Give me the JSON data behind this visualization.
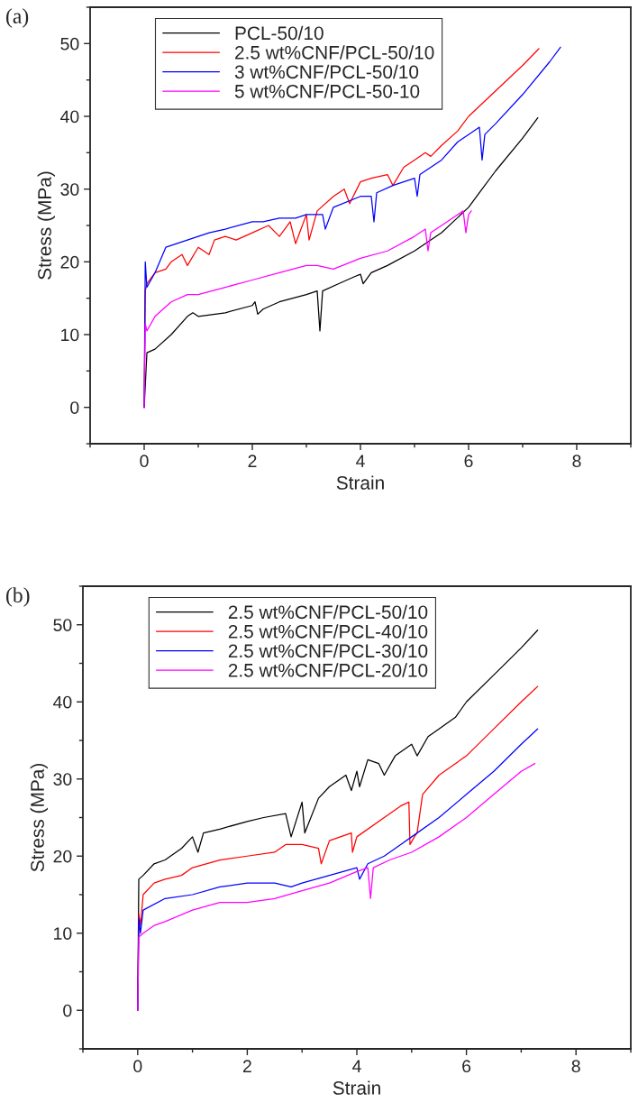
{
  "chart_data": [
    {
      "type": "line",
      "title": "(a)",
      "xlabel": "Strain",
      "ylabel": "Stress (MPa)",
      "xlim": [
        -1,
        9
      ],
      "ylim": [
        -5,
        55
      ],
      "xticks": [
        0,
        2,
        4,
        6,
        8
      ],
      "yticks": [
        0,
        10,
        20,
        30,
        40,
        50
      ],
      "legend": "top left",
      "series": [
        {
          "name": "PCL-50/10",
          "color": "#000000",
          "x": [
            0,
            0.05,
            0.2,
            0.5,
            0.8,
            0.9,
            1,
            1.5,
            2,
            2.05,
            2.1,
            2.2,
            2.5,
            3,
            3.2,
            3.25,
            3.3,
            3.6,
            3.9,
            4,
            4.05,
            4.2,
            4.5,
            5,
            5.5,
            6,
            6.2,
            6.5,
            7,
            7.28
          ],
          "values": [
            0,
            7.5,
            8,
            10,
            12.5,
            13,
            12.5,
            13,
            14,
            14.5,
            12.8,
            13.5,
            14.5,
            15.5,
            16,
            10.5,
            16,
            17,
            18,
            18.3,
            17,
            18.5,
            19.5,
            21.5,
            24,
            27.5,
            29.5,
            32.5,
            37,
            39.8
          ]
        },
        {
          "name": "2.5 wt%CNF/PCL-50/10",
          "color": "#ff0000",
          "x": [
            0,
            0.02,
            0.05,
            0.2,
            0.4,
            0.5,
            0.7,
            0.8,
            1,
            1.2,
            1.3,
            1.5,
            1.7,
            2,
            2.3,
            2.5,
            2.7,
            2.8,
            3,
            3.05,
            3.2,
            3.5,
            3.7,
            3.8,
            4,
            4.2,
            4.5,
            4.6,
            4.8,
            5,
            5.2,
            5.3,
            5.5,
            5.8,
            6,
            6.5,
            7,
            7.3
          ],
          "values": [
            0,
            16,
            17,
            18.5,
            19,
            20,
            21,
            19.5,
            22,
            21,
            23,
            23.5,
            23,
            24,
            25,
            23.5,
            25.5,
            22.5,
            26.5,
            23,
            27,
            29,
            30,
            28,
            31,
            31.5,
            32,
            30.5,
            33,
            34,
            35,
            34.5,
            36,
            38,
            40,
            43.5,
            47,
            49.3
          ]
        },
        {
          "name": "3 wt%CNF/PCL-50/10",
          "color": "#0000ff",
          "x": [
            0,
            0.02,
            0.05,
            0.2,
            0.4,
            0.6,
            0.8,
            1,
            1.2,
            1.5,
            2,
            2.2,
            2.5,
            2.8,
            3,
            3.3,
            3.35,
            3.5,
            4,
            4.2,
            4.25,
            4.3,
            4.6,
            5,
            5.05,
            5.1,
            5.5,
            5.8,
            6,
            6.2,
            6.25,
            6.3,
            6.5,
            7,
            7.5,
            7.7
          ],
          "values": [
            0,
            20,
            16.5,
            18.5,
            22,
            22.5,
            23,
            23.5,
            24,
            24.5,
            25.5,
            25.5,
            26,
            26,
            26.5,
            26.5,
            24.5,
            27.5,
            29,
            29,
            25.5,
            29.5,
            30.5,
            31.5,
            29,
            32,
            34,
            36.5,
            37.5,
            38.5,
            34,
            37.5,
            39,
            43,
            47.5,
            49.5
          ]
        },
        {
          "name": "5 wt%CNF/PCL-50-10",
          "color": "#ff00ff",
          "x": [
            0,
            0.02,
            0.05,
            0.2,
            0.5,
            0.8,
            1,
            1.5,
            2,
            2.5,
            3,
            3.2,
            3.5,
            4,
            4.5,
            5,
            5.2,
            5.25,
            5.3,
            5.6,
            5.9,
            5.95,
            6,
            6.05
          ],
          "values": [
            0,
            11.5,
            10.5,
            12.5,
            14.5,
            15.5,
            15.5,
            16.5,
            17.5,
            18.5,
            19.5,
            19.5,
            19,
            20.5,
            21.5,
            23.5,
            24.5,
            21.5,
            24,
            25.5,
            27,
            24,
            26.5,
            27
          ]
        }
      ]
    },
    {
      "type": "line",
      "title": "(b)",
      "xlabel": "Strain",
      "ylabel": "Stress (MPa)",
      "xlim": [
        -1,
        9
      ],
      "ylim": [
        -5,
        55
      ],
      "xticks": [
        0,
        2,
        4,
        6,
        8
      ],
      "yticks": [
        0,
        10,
        20,
        30,
        40,
        50
      ],
      "legend": "top left",
      "series": [
        {
          "name": "2.5 wt%CNF/PCL-50/10",
          "color": "#000000",
          "x": [
            0,
            0.02,
            0.1,
            0.3,
            0.5,
            0.8,
            1,
            1.1,
            1.2,
            1.5,
            2,
            2.3,
            2.7,
            2.8,
            3,
            3.05,
            3.3,
            3.5,
            3.8,
            3.9,
            4,
            4.05,
            4.2,
            4.4,
            4.5,
            4.7,
            5,
            5.1,
            5.3,
            5.5,
            5.8,
            6,
            6.5,
            7,
            7.3
          ],
          "values": [
            0,
            17,
            17.5,
            19,
            19.5,
            21,
            22.5,
            20.5,
            23,
            23.5,
            24.5,
            25,
            25.5,
            22.5,
            27,
            23,
            27.5,
            29,
            30.5,
            28.5,
            31,
            29,
            32.5,
            32,
            30.5,
            33,
            34.5,
            33,
            35.5,
            36.5,
            38,
            40,
            43.5,
            47,
            49.3
          ]
        },
        {
          "name": "2.5 wt%CNF/PCL-40/10",
          "color": "#ff0000",
          "x": [
            0,
            0.02,
            0.05,
            0.1,
            0.3,
            0.5,
            0.8,
            1,
            1.5,
            2,
            2.5,
            2.7,
            3,
            3.3,
            3.35,
            3.5,
            3.9,
            3.92,
            4,
            4.5,
            4.8,
            4.95,
            4.97,
            5.05,
            5.1,
            5.2,
            5.5,
            6,
            6.5,
            7,
            7.3
          ],
          "values": [
            0,
            12.5,
            11,
            15,
            16.5,
            17,
            17.5,
            18.5,
            19.5,
            20,
            20.5,
            21.5,
            21.5,
            21,
            19,
            22,
            23,
            20.5,
            22.5,
            25,
            26.5,
            27,
            21.5,
            22.5,
            23,
            28,
            30.5,
            33,
            36.5,
            40,
            42
          ]
        },
        {
          "name": "2.5 wt%CNF/PCL-30/10",
          "color": "#0000ff",
          "x": [
            0,
            0.02,
            0.05,
            0.1,
            0.5,
            1,
            1.5,
            2,
            2.5,
            2.8,
            3,
            3.5,
            4,
            4.05,
            4.2,
            4.5,
            4.8,
            5,
            5.5,
            6,
            6.5,
            7,
            7.3
          ],
          "values": [
            0,
            12,
            10,
            13,
            14.5,
            15,
            16,
            16.5,
            16.5,
            16,
            16.5,
            17.5,
            18.5,
            17,
            19,
            20,
            21.5,
            22.5,
            25,
            28,
            31,
            34.5,
            36.5
          ]
        },
        {
          "name": "2.5 wt%CNF/PCL-20/10",
          "color": "#ff00ff",
          "x": [
            0,
            0.02,
            0.1,
            0.3,
            0.5,
            1,
            1.5,
            2,
            2.5,
            3,
            3.5,
            4,
            4.2,
            4.25,
            4.3,
            4.6,
            5,
            5.5,
            6,
            6.5,
            7,
            7.25
          ],
          "values": [
            0,
            9.5,
            10,
            11,
            11.5,
            13,
            14,
            14,
            14.5,
            15.5,
            16.5,
            18,
            18.5,
            14.5,
            18.5,
            19.5,
            20.5,
            22.5,
            25,
            28,
            31,
            32
          ]
        }
      ]
    }
  ]
}
